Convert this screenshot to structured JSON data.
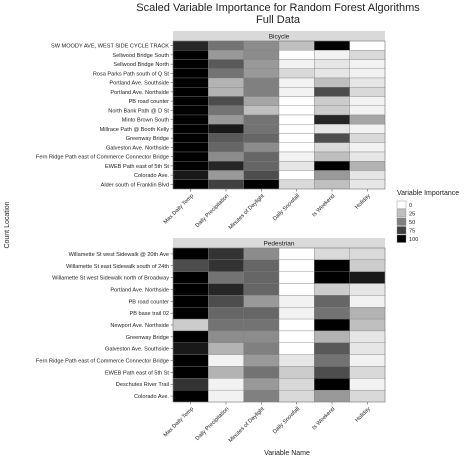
{
  "chart_data": {
    "type": "heatmap",
    "title": "Scaled Variable Importance for Random Forest Algorithms",
    "subtitle": "Full Data",
    "xlabel": "Variable Name",
    "ylabel": "Count Location",
    "columns": [
      "Max Daily Temp",
      "Daily Precipitation",
      "Minutes of Daylight",
      "Daily Snowfall",
      "Is Weekend",
      "Holiday"
    ],
    "legend": {
      "title": "Variable Importance",
      "ticks": [
        0,
        25,
        50,
        75,
        100
      ],
      "scale": [
        "#ffffff",
        "#000000"
      ],
      "placement": "right"
    },
    "panels": [
      {
        "name": "Bicycle",
        "rows": [
          "SW MOODY AVE, WEST SIDE CYCLE TRACK",
          "Sellwood Bridge South",
          "Sellwood Bridge North",
          "Rosa Parks Path south of Q St",
          "Portland Ave. Southside",
          "Portland Ave. Northside",
          "PB road counter",
          "North Bank Path @ D St",
          "Minto Brown South",
          "Millrace Path @ Booth Kelly",
          "Greenway Bridge",
          "Galveston Ave. Northside",
          "Fern Ridge Path east of Commerce Connector Bridge",
          "EWEB Path east of 5th St",
          "Colorado Ave.",
          "Alder south of Franklin Blvd"
        ],
        "values": [
          [
            85,
            55,
            45,
            25,
            100,
            0
          ],
          [
            100,
            40,
            45,
            0,
            5,
            15
          ],
          [
            100,
            65,
            40,
            5,
            10,
            5
          ],
          [
            100,
            55,
            40,
            15,
            10,
            5
          ],
          [
            100,
            30,
            50,
            5,
            25,
            10
          ],
          [
            100,
            30,
            50,
            5,
            70,
            15
          ],
          [
            100,
            70,
            35,
            0,
            20,
            5
          ],
          [
            100,
            55,
            25,
            0,
            20,
            5
          ],
          [
            100,
            40,
            55,
            0,
            85,
            35
          ],
          [
            100,
            90,
            55,
            0,
            10,
            5
          ],
          [
            100,
            65,
            60,
            0,
            70,
            15
          ],
          [
            100,
            60,
            45,
            0,
            15,
            5
          ],
          [
            100,
            45,
            60,
            5,
            25,
            10
          ],
          [
            100,
            85,
            60,
            10,
            100,
            30
          ],
          [
            90,
            40,
            70,
            0,
            40,
            10
          ],
          [
            100,
            75,
            100,
            15,
            25,
            10
          ]
        ]
      },
      {
        "name": "Pedestrian",
        "rows": [
          "Willamette St west Sidewalk @ 20th Ave",
          "Willamette St east Sidewalk south of 24th",
          "Willamette St west Sidewalk north of Broadway",
          "Portland Ave. Northside",
          "PB road counter",
          "PB base trail 02",
          "Newport Ave. Northside",
          "Greenway Bridge",
          "Galveston Ave. Southside",
          "Fern Ridge Path east of Commerce Connector Bridge",
          "EWEB Path east of 5th St",
          "Deschutes River Trail",
          "Colorado Ave."
        ],
        "values": [
          [
            100,
            80,
            45,
            0,
            15,
            15
          ],
          [
            70,
            80,
            60,
            0,
            100,
            20
          ],
          [
            100,
            55,
            60,
            0,
            100,
            90
          ],
          [
            100,
            85,
            60,
            0,
            20,
            10
          ],
          [
            100,
            70,
            40,
            5,
            60,
            5
          ],
          [
            100,
            60,
            60,
            5,
            55,
            30
          ],
          [
            20,
            55,
            55,
            0,
            100,
            25
          ],
          [
            100,
            45,
            45,
            0,
            30,
            10
          ],
          [
            90,
            30,
            50,
            0,
            65,
            10
          ],
          [
            100,
            5,
            40,
            10,
            55,
            5
          ],
          [
            100,
            30,
            55,
            20,
            70,
            15
          ],
          [
            80,
            5,
            40,
            15,
            100,
            5
          ],
          [
            100,
            5,
            50,
            15,
            40,
            15
          ]
        ]
      }
    ]
  }
}
